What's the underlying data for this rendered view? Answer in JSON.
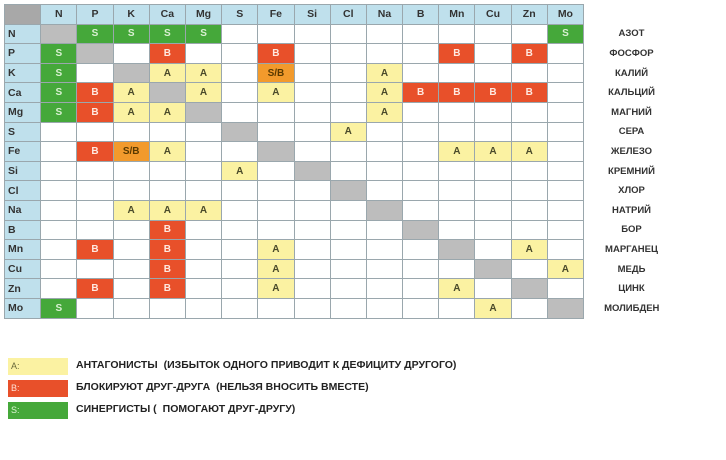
{
  "elements": [
    "N",
    "P",
    "K",
    "Ca",
    "Mg",
    "S",
    "Fe",
    "Si",
    "Cl",
    "Na",
    "B",
    "Mn",
    "Cu",
    "Zn",
    "Mo"
  ],
  "names": [
    "АЗОТ",
    "ФОСФОР",
    "КАЛИЙ",
    "КАЛЬЦИЙ",
    "МАГНИЙ",
    "СЕРА",
    "ЖЕЛЕЗО",
    "КРЕМНИЙ",
    "ХЛОР",
    "НАТРИЙ",
    "БОР",
    "МАРГАНЕЦ",
    "МЕДЬ",
    "ЦИНК",
    "МОЛИБДЕН"
  ],
  "matrix": [
    [
      "",
      "S",
      "S",
      "S",
      "S",
      "",
      "",
      "",
      "",
      "",
      "",
      "",
      "",
      "",
      "S"
    ],
    [
      "S",
      "",
      "",
      "B",
      "",
      "",
      "B",
      "",
      "",
      "",
      "",
      "B",
      "",
      "B",
      ""
    ],
    [
      "S",
      "",
      "",
      "A",
      "A",
      "",
      "S/B",
      "",
      "",
      "A",
      "",
      "",
      "",
      "",
      ""
    ],
    [
      "S",
      "B",
      "A",
      "",
      "A",
      "",
      "A",
      "",
      "",
      "A",
      "B",
      "B",
      "B",
      "B",
      ""
    ],
    [
      "S",
      "B",
      "A",
      "A",
      "",
      "",
      "",
      "",
      "",
      "A",
      "",
      "",
      "",
      "",
      ""
    ],
    [
      "",
      "",
      "",
      "",
      "",
      "",
      "",
      "",
      "A",
      "",
      "",
      "",
      "",
      "",
      ""
    ],
    [
      "",
      "B",
      "S/B",
      "A",
      "",
      "",
      "",
      "",
      "",
      "",
      "",
      "A",
      "A",
      "A",
      ""
    ],
    [
      "",
      "",
      "",
      "",
      "",
      "A",
      "",
      "",
      "",
      "",
      "",
      "",
      "",
      "",
      ""
    ],
    [
      "",
      "",
      "",
      "",
      "",
      "",
      "",
      "",
      "",
      "",
      "",
      "",
      "",
      "",
      ""
    ],
    [
      "",
      "",
      "A",
      "A",
      "A",
      "",
      "",
      "",
      "",
      "",
      "",
      "",
      "",
      "",
      ""
    ],
    [
      "",
      "",
      "",
      "B",
      "",
      "",
      "",
      "",
      "",
      "",
      "",
      "",
      "",
      "",
      ""
    ],
    [
      "",
      "B",
      "",
      "B",
      "",
      "",
      "A",
      "",
      "",
      "",
      "",
      "",
      "",
      "A",
      ""
    ],
    [
      "",
      "",
      "",
      "B",
      "",
      "",
      "A",
      "",
      "",
      "",
      "",
      "",
      "",
      "",
      "A"
    ],
    [
      "",
      "B",
      "",
      "B",
      "",
      "",
      "A",
      "",
      "",
      "",
      "",
      "A",
      "",
      "",
      ""
    ],
    [
      "S",
      "",
      "",
      "",
      "",
      "",
      "",
      "",
      "",
      "",
      "",
      "",
      "A",
      "",
      ""
    ]
  ],
  "cell_styles": {
    "A": {
      "fill": "#fbf2a2"
    },
    "B": {
      "fill": "#e8502a"
    },
    "S/B": {
      "fill": "#f29a2c"
    },
    "S": {
      "fill": "#45a83a"
    },
    "header_fill": "#bfe0ec",
    "diagonal_fill": "#bdbdbd"
  },
  "legend": [
    {
      "code": "A:",
      "label": "АНТАГОНИСТЫ",
      "note": "(ИЗБЫТОК ОДНОГО ПРИВОДИТ К ДЕФИЦИТУ ДРУГОГО)",
      "swatch_class": "sw-A"
    },
    {
      "code": "B:",
      "label": "БЛОКИРУЮТ ДРУГ-ДРУГА",
      "note": "(НЕЛЬЗЯ ВНОСИТЬ ВМЕСТЕ)",
      "swatch_class": "sw-B"
    },
    {
      "code": "S:",
      "label": "СИНЕРГИСТЫ (",
      "note": "ПОМОГАЮТ ДРУГ-ДРУГУ)",
      "swatch_class": "sw-S"
    }
  ]
}
